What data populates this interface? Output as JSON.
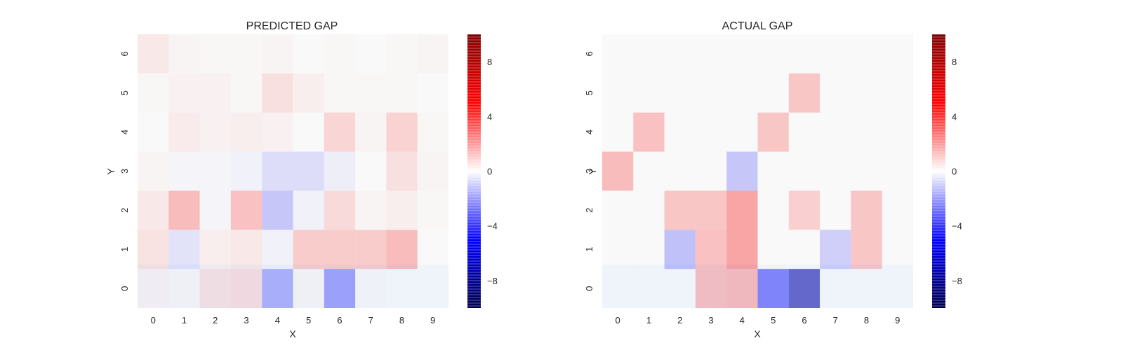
{
  "colorbar_ticks": [
    8,
    4,
    0,
    -4,
    -8
  ],
  "colorbar_tick_labels": [
    "8",
    "4",
    "0",
    "−4",
    "−8"
  ],
  "chart_data": [
    {
      "type": "heatmap",
      "title": "PREDICTED GAP",
      "xlabel": "X",
      "ylabel": "Y",
      "x": [
        0,
        1,
        2,
        3,
        4,
        5,
        6,
        7,
        8,
        9
      ],
      "y": [
        0,
        1,
        2,
        3,
        4,
        5,
        6
      ],
      "clim": [
        -10,
        10
      ],
      "colormap": "seismic",
      "values": [
        [
          0.3,
          0.2,
          0.8,
          1.0,
          -2.5,
          0.2,
          -3.0,
          0.1,
          0.0,
          0.0
        ],
        [
          0.8,
          -0.8,
          0.4,
          0.6,
          -0.3,
          1.6,
          1.6,
          1.6,
          2.2,
          0.0
        ],
        [
          0.6,
          2.2,
          -0.2,
          2.0,
          -1.8,
          -0.3,
          1.1,
          0.2,
          0.4,
          0.1
        ],
        [
          0.2,
          -0.2,
          -0.2,
          -0.3,
          -1.0,
          -1.0,
          -0.4,
          0.0,
          0.9,
          0.2
        ],
        [
          0.0,
          0.5,
          0.3,
          0.4,
          0.3,
          0.0,
          1.3,
          0.2,
          1.4,
          0.1
        ],
        [
          0.1,
          0.3,
          0.3,
          0.1,
          0.9,
          0.4,
          0.1,
          0.1,
          0.1,
          0.0
        ],
        [
          0.6,
          0.2,
          0.1,
          0.1,
          0.2,
          0.0,
          0.1,
          0.0,
          0.1,
          0.2
        ]
      ]
    },
    {
      "type": "heatmap",
      "title": "ACTUAL GAP",
      "xlabel": "X",
      "ylabel": "Y",
      "x": [
        0,
        1,
        2,
        3,
        4,
        5,
        6,
        7,
        8,
        9
      ],
      "y": [
        0,
        1,
        2,
        3,
        4,
        5,
        6
      ],
      "clim": [
        -10,
        10
      ],
      "colormap": "seismic",
      "values": [
        [
          0.0,
          0.0,
          0.0,
          2.0,
          2.2,
          -4.0,
          -7.5,
          0.0,
          0.0,
          0.0
        ],
        [
          0.0,
          0.0,
          -2.0,
          2.0,
          3.0,
          0.0,
          0.0,
          -1.5,
          1.8,
          0.0
        ],
        [
          0.0,
          0.0,
          1.8,
          1.8,
          3.0,
          0.0,
          1.5,
          0.0,
          1.8,
          0.0
        ],
        [
          2.2,
          0.0,
          0.0,
          0.0,
          -1.8,
          0.0,
          0.0,
          0.0,
          0.0,
          0.0
        ],
        [
          0.0,
          2.0,
          0.0,
          0.0,
          0.0,
          1.8,
          0.0,
          0.0,
          0.0,
          0.0
        ],
        [
          0.0,
          0.0,
          0.0,
          0.0,
          0.0,
          0.0,
          1.8,
          0.0,
          0.0,
          0.0
        ],
        [
          0.0,
          0.0,
          0.0,
          0.0,
          0.0,
          0.0,
          0.0,
          0.0,
          0.0,
          0.0
        ]
      ]
    }
  ]
}
